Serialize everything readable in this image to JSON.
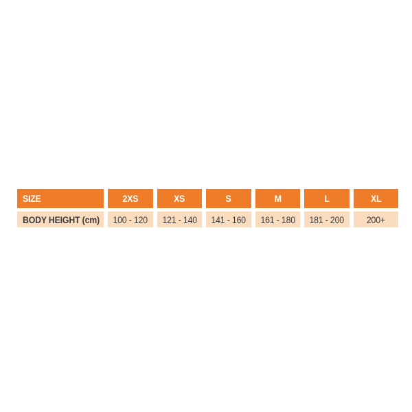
{
  "colors": {
    "accent_orange": "#EE7C28",
    "row_peach": "#FADCBE",
    "header_text": "#FFFFFF",
    "body_text": "#3D3B3A",
    "canvas_background": "#FFFFFF"
  },
  "chart_data": {
    "type": "table",
    "columns": [
      "SIZE",
      "2XS",
      "XS",
      "S",
      "M",
      "L",
      "XL"
    ],
    "rows": [
      {
        "label": "BODY HEIGHT (cm)",
        "values": [
          "100 - 120",
          "121 - 140",
          "141 - 160",
          "161 - 180",
          "181 - 200",
          "200+"
        ]
      }
    ],
    "layout_hints": {
      "header_bg": "#EE7C28",
      "row_bg": "#FADCBE",
      "cell_gap_color": "#FFFFFF",
      "first_column_align": "left",
      "value_columns_align": "center"
    }
  }
}
